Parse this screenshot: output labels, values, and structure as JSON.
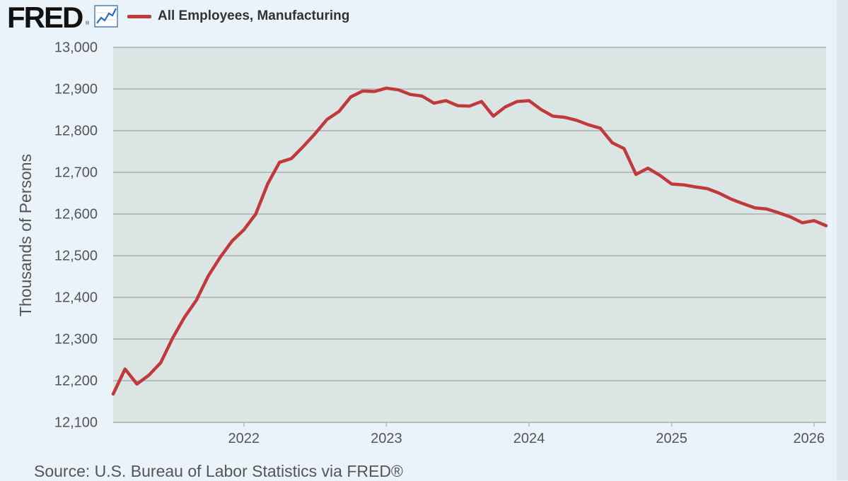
{
  "logo": {
    "text": "FRED",
    "mark": "®",
    "icon": "trend-line-chart-icon"
  },
  "source_note": "Source: U.S. Bureau of Labor Statistics via FRED®",
  "colors": {
    "line": "#c0393b",
    "plot_background": "#dbe5e3",
    "page_background": "#eaf2fa",
    "grid": "#b9bcbf",
    "text": "#555555"
  },
  "chart_data": {
    "type": "line",
    "title": "",
    "xlabel": "",
    "ylabel": "Thousands of Persons",
    "ylim": [
      12100,
      13000
    ],
    "xlim": [
      "2021-02-01",
      "2026-02-01"
    ],
    "grid": true,
    "legend": "top-left",
    "y_ticks": [
      {
        "value": 12100,
        "label": "12,100"
      },
      {
        "value": 12200,
        "label": "12,200"
      },
      {
        "value": 12300,
        "label": "12,300"
      },
      {
        "value": 12400,
        "label": "12,400"
      },
      {
        "value": 12500,
        "label": "12,500"
      },
      {
        "value": 12600,
        "label": "12,600"
      },
      {
        "value": 12700,
        "label": "12,700"
      },
      {
        "value": 12800,
        "label": "12,800"
      },
      {
        "value": 12900,
        "label": "12,900"
      },
      {
        "value": 13000,
        "label": "13,000"
      }
    ],
    "x_ticks": [
      {
        "value": "2022-01-01",
        "label": "2022"
      },
      {
        "value": "2023-01-01",
        "label": "2023"
      },
      {
        "value": "2024-01-01",
        "label": "2024"
      },
      {
        "value": "2025-01-01",
        "label": "2025"
      },
      {
        "value": "2026-01-01",
        "label": "2026"
      }
    ],
    "series": [
      {
        "name": "All Employees, Manufacturing",
        "x": [
          "2021-02-01",
          "2021-03-01",
          "2021-04-01",
          "2021-05-01",
          "2021-06-01",
          "2021-07-01",
          "2021-08-01",
          "2021-09-01",
          "2021-10-01",
          "2021-11-01",
          "2021-12-01",
          "2022-01-01",
          "2022-02-01",
          "2022-03-01",
          "2022-04-01",
          "2022-05-01",
          "2022-06-01",
          "2022-07-01",
          "2022-08-01",
          "2022-09-01",
          "2022-10-01",
          "2022-11-01",
          "2022-12-01",
          "2023-01-01",
          "2023-02-01",
          "2023-03-01",
          "2023-04-01",
          "2023-05-01",
          "2023-06-01",
          "2023-07-01",
          "2023-08-01",
          "2023-09-01",
          "2023-10-01",
          "2023-11-01",
          "2023-12-01",
          "2024-01-01",
          "2024-02-01",
          "2024-03-01",
          "2024-04-01",
          "2024-05-01",
          "2024-06-01",
          "2024-07-01",
          "2024-08-01",
          "2024-09-01",
          "2024-10-01",
          "2024-11-01",
          "2024-12-01",
          "2025-01-01",
          "2025-02-01",
          "2025-03-01",
          "2025-04-01",
          "2025-05-01",
          "2025-06-01",
          "2025-07-01",
          "2025-08-01",
          "2025-09-01",
          "2025-10-01",
          "2025-11-01",
          "2025-12-01",
          "2026-01-01",
          "2026-02-01"
        ],
        "values": [
          12168,
          12228,
          12192,
          12213,
          12243,
          12302,
          12352,
          12393,
          12451,
          12496,
          12535,
          12562,
          12600,
          12672,
          12724,
          12733,
          12762,
          12793,
          12827,
          12846,
          12881,
          12895,
          12894,
          12902,
          12898,
          12887,
          12883,
          12866,
          12872,
          12860,
          12859,
          12870,
          12835,
          12857,
          12870,
          12872,
          12851,
          12835,
          12832,
          12825,
          12814,
          12806,
          12771,
          12757,
          12695,
          12710,
          12693,
          12672,
          12670,
          12665,
          12661,
          12650,
          12636,
          12625,
          12615,
          12612,
          12603,
          12593,
          12579,
          12584,
          12572
        ]
      }
    ]
  }
}
